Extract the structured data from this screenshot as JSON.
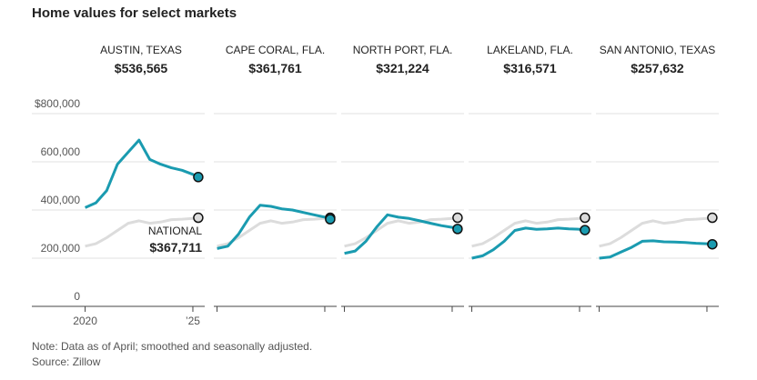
{
  "chart_data": {
    "type": "line",
    "title": "Home values for select markets",
    "note": "Note: Data as of April; smoothed and seasonally adjusted.",
    "source": "Source: Zillow",
    "x": [
      2020,
      2020.5,
      2021,
      2021.5,
      2022,
      2022.5,
      2023,
      2023.5,
      2024,
      2024.5,
      2025,
      2025.25
    ],
    "xlim": [
      2019.85,
      2025.55
    ],
    "xticks": [
      2020,
      {
        "value": 2025,
        "label": "’25"
      }
    ],
    "ylim": [
      0,
      800000
    ],
    "yticks": [
      0,
      {
        "value": 200000,
        "label": "200,000"
      },
      {
        "value": 400000,
        "label": "400,000"
      },
      {
        "value": 600000,
        "label": "600,000"
      },
      {
        "value": 800000,
        "label": "$800,000"
      }
    ],
    "grid": true,
    "national": {
      "name": "NATIONAL",
      "value": 367711,
      "value_label": "$367,711",
      "color": "#dcdcdc",
      "values": [
        250000,
        260000,
        285000,
        315000,
        345000,
        355000,
        345000,
        350000,
        360000,
        362000,
        365000,
        367711
      ]
    },
    "series": [
      {
        "name": "AUSTIN, TEXAS",
        "value": 536565,
        "value_label": "$536,565",
        "color": "#1a9bb0",
        "values": [
          410000,
          430000,
          480000,
          590000,
          640000,
          690000,
          610000,
          590000,
          575000,
          565000,
          548000,
          536565
        ]
      },
      {
        "name": "CAPE CORAL, FLA.",
        "value": 361761,
        "value_label": "$361,761",
        "color": "#1a9bb0",
        "values": [
          240000,
          250000,
          300000,
          370000,
          420000,
          415000,
          405000,
          400000,
          390000,
          380000,
          370000,
          361761
        ]
      },
      {
        "name": "NORTH PORT, FLA.",
        "value": 321224,
        "value_label": "$321,224",
        "color": "#1a9bb0",
        "values": [
          220000,
          230000,
          270000,
          330000,
          380000,
          370000,
          365000,
          355000,
          345000,
          335000,
          328000,
          321224
        ]
      },
      {
        "name": "LAKELAND, FLA.",
        "value": 316571,
        "value_label": "$316,571",
        "color": "#1a9bb0",
        "values": [
          200000,
          210000,
          235000,
          270000,
          315000,
          325000,
          320000,
          322000,
          325000,
          322000,
          320000,
          316571
        ]
      },
      {
        "name": "SAN ANTONIO, TEXAS",
        "value": 257632,
        "value_label": "$257,632",
        "color": "#1a9bb0",
        "values": [
          200000,
          205000,
          225000,
          245000,
          270000,
          272000,
          268000,
          267000,
          265000,
          262000,
          260000,
          257632
        ]
      }
    ]
  }
}
